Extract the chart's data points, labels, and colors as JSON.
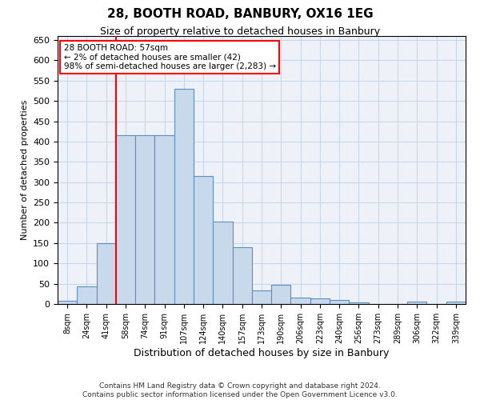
{
  "title": "28, BOOTH ROAD, BANBURY, OX16 1EG",
  "subtitle": "Size of property relative to detached houses in Banbury",
  "xlabel": "Distribution of detached houses by size in Banbury",
  "ylabel": "Number of detached properties",
  "categories": [
    "8sqm",
    "24sqm",
    "41sqm",
    "58sqm",
    "74sqm",
    "91sqm",
    "107sqm",
    "124sqm",
    "140sqm",
    "157sqm",
    "173sqm",
    "190sqm",
    "206sqm",
    "223sqm",
    "240sqm",
    "256sqm",
    "273sqm",
    "289sqm",
    "306sqm",
    "322sqm",
    "339sqm"
  ],
  "values": [
    8,
    44,
    150,
    415,
    415,
    415,
    530,
    315,
    202,
    140,
    33,
    47,
    15,
    13,
    9,
    4,
    0,
    0,
    6,
    0,
    6
  ],
  "bar_color": "#c9d9ec",
  "bar_edge_color": "#5b8fbe",
  "vline_x": 2.5,
  "annotation_text": "28 BOOTH ROAD: 57sqm\n← 2% of detached houses are smaller (42)\n98% of semi-detached houses are larger (2,283) →",
  "annotation_box_color": "white",
  "annotation_box_edge_color": "red",
  "vline_color": "red",
  "ylim": [
    0,
    660
  ],
  "yticks": [
    0,
    50,
    100,
    150,
    200,
    250,
    300,
    350,
    400,
    450,
    500,
    550,
    600,
    650
  ],
  "footer_line1": "Contains HM Land Registry data © Crown copyright and database right 2024.",
  "footer_line2": "Contains public sector information licensed under the Open Government Licence v3.0.",
  "grid_color": "#c8d8e8",
  "background_color": "#eef2f8"
}
